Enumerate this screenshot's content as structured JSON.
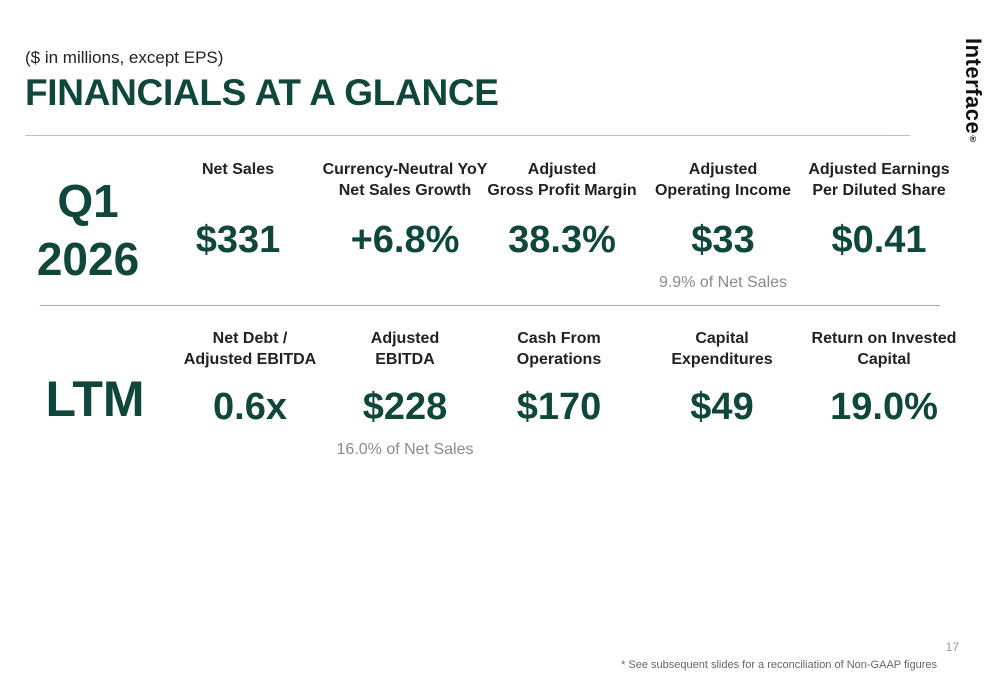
{
  "header": {
    "subtitle": "($ in millions, except EPS)",
    "title": "FINANCIALS AT A GLANCE",
    "logo_text": "Interface",
    "logo_mark": "®"
  },
  "q1": {
    "period_label": "Q1\n2026",
    "metrics": [
      {
        "label": "Net Sales",
        "value": "$331",
        "note": ""
      },
      {
        "label": "Currency-Neutral YoY\nNet Sales Growth",
        "value": "+6.8%",
        "note": ""
      },
      {
        "label": "Adjusted\nGross Profit Margin",
        "value": "38.3%",
        "note": ""
      },
      {
        "label": "Adjusted\nOperating Income",
        "value": "$33",
        "note": "9.9% of Net Sales"
      },
      {
        "label": "Adjusted Earnings\nPer Diluted Share",
        "value": "$0.41",
        "note": ""
      }
    ]
  },
  "ltm": {
    "period_label": "LTM",
    "metrics": [
      {
        "label": "Net Debt /\nAdjusted EBITDA",
        "value": "0.6x",
        "note": ""
      },
      {
        "label": "Adjusted\nEBITDA",
        "value": "$228",
        "note": "16.0% of Net Sales"
      },
      {
        "label": "Cash From\nOperations",
        "value": "$170",
        "note": ""
      },
      {
        "label": "Capital\nExpenditures",
        "value": "$49",
        "note": ""
      },
      {
        "label": "Return on Invested\nCapital",
        "value": "19.0%",
        "note": ""
      }
    ]
  },
  "footer": {
    "page_number": "17",
    "footnote": "* See subsequent slides for a reconciliation of Non-GAAP figures"
  },
  "colors": {
    "accent": "#10473c",
    "rule": "#9fb2ad",
    "note": "#8a8a8a"
  }
}
